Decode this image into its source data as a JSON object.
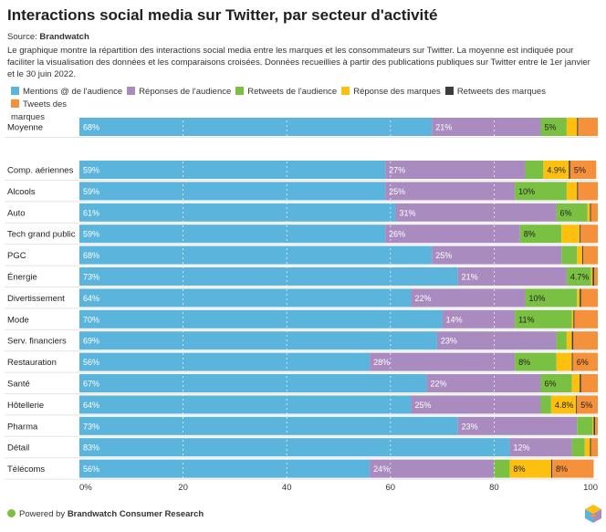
{
  "header": {
    "title": "Interactions social media sur Twitter, par secteur d'activité",
    "source_label": "Source:",
    "source_name": "Brandwatch",
    "description": "Le graphique montre la répartition des interactions social media entre les marques et les consommateurs sur Twitter. La moyenne est indiquée pour faciliter la visualisation des données et les comparaisons croisées. Données recueillies à partir des publications publiques sur Twitter entre le 1er janvier et le 30 juin 2022."
  },
  "footer": {
    "prefix": "Powered by",
    "brand": "Brandwatch Consumer Research"
  },
  "colors": {
    "mentions": "#5ab4dc",
    "reponses_audience": "#a98bc0",
    "retweets_audience": "#7ac143",
    "reponse_marques": "#fdc00f",
    "retweets_marques": "#3d3d3d",
    "tweets_marques": "#f4913a",
    "footer_dot": "#7ac143"
  },
  "chart_data": {
    "type": "bar",
    "orientation": "horizontal",
    "stacked": true,
    "categories": [
      "Moyenne",
      "Comp. aériennes",
      "Alcools",
      "Auto",
      "Tech grand public",
      "PGC",
      "Énergie",
      "Divertissement",
      "Mode",
      "Serv. financiers",
      "Restauration",
      "Santé",
      "Hôtellerie",
      "Pharma",
      "Détail",
      "Télécoms"
    ],
    "series": [
      {
        "name": "Mentions @ de l'audience",
        "color": "#5ab4dc",
        "values": [
          68,
          59,
          59,
          61,
          59,
          68,
          73,
          64,
          70,
          69,
          56,
          67,
          64,
          73,
          83,
          56
        ],
        "labels": [
          "68%",
          "59%",
          "59%",
          "61%",
          "59%",
          "68%",
          "73%",
          "64%",
          "70%",
          "69%",
          "56%",
          "67%",
          "64%",
          "73%",
          "83%",
          "56%"
        ]
      },
      {
        "name": "Réponses de l'audience",
        "color": "#a98bc0",
        "values": [
          21,
          27,
          25,
          31,
          26,
          25,
          21,
          22,
          14,
          23,
          28,
          22,
          25,
          23,
          12,
          24
        ],
        "labels": [
          "21%",
          "27%",
          "25%",
          "31%",
          "26%",
          "25%",
          "21%",
          "22%",
          "14%",
          "23%",
          "28%",
          "22%",
          "25%",
          "23%",
          "12%",
          "24%"
        ]
      },
      {
        "name": "Retweets de l'audience",
        "color": "#7ac143",
        "values": [
          5,
          3.5,
          10,
          6,
          8,
          3,
          4.7,
          10,
          11,
          2,
          8,
          6,
          2,
          3,
          2.5,
          3
        ],
        "labels": [
          "5%",
          "",
          "10%",
          "6%",
          "8%",
          "",
          "4.7%",
          "10%",
          "11%",
          "",
          "8%",
          "6%",
          "",
          "",
          "",
          ""
        ]
      },
      {
        "name": "Réponse des marques",
        "color": "#fdc00f",
        "values": [
          2,
          4.9,
          2,
          0.5,
          3.5,
          1,
          0.3,
          0.5,
          0.3,
          1,
          3,
          1.5,
          4.8,
          0.2,
          1,
          8
        ],
        "labels": [
          "",
          "4.9%",
          "",
          "",
          "",
          "",
          "",
          "",
          "",
          "",
          "",
          "",
          "4.8%",
          "",
          "",
          "8%"
        ]
      },
      {
        "name": "Retweets des marques",
        "color": "#3d3d3d",
        "values": [
          0.2,
          0.3,
          0.2,
          0.2,
          0.2,
          0.2,
          0.3,
          0.3,
          0.2,
          0.3,
          0.2,
          0.3,
          0.2,
          0.3,
          0.2,
          0.2
        ],
        "labels": [
          "",
          "",
          "",
          "",
          "",
          "",
          "",
          "",
          "",
          "",
          "",
          "",
          "",
          "",
          "",
          ""
        ]
      },
      {
        "name": "Tweets des marques",
        "color": "#f4913a",
        "values": [
          3.8,
          5,
          3.8,
          1.3,
          3.3,
          2.8,
          0.7,
          3.2,
          4.5,
          4.7,
          6,
          3.2,
          5,
          0.5,
          1.3,
          8
        ],
        "labels": [
          "",
          "5%",
          "",
          "",
          "",
          "",
          "",
          "",
          "",
          "",
          "6%",
          "",
          "5%",
          "",
          "",
          "8%"
        ]
      }
    ],
    "xlim": [
      0,
      100
    ],
    "xticks": [
      "0%",
      "20",
      "40",
      "60",
      "80",
      "100"
    ],
    "grid": true,
    "legend": "top"
  }
}
